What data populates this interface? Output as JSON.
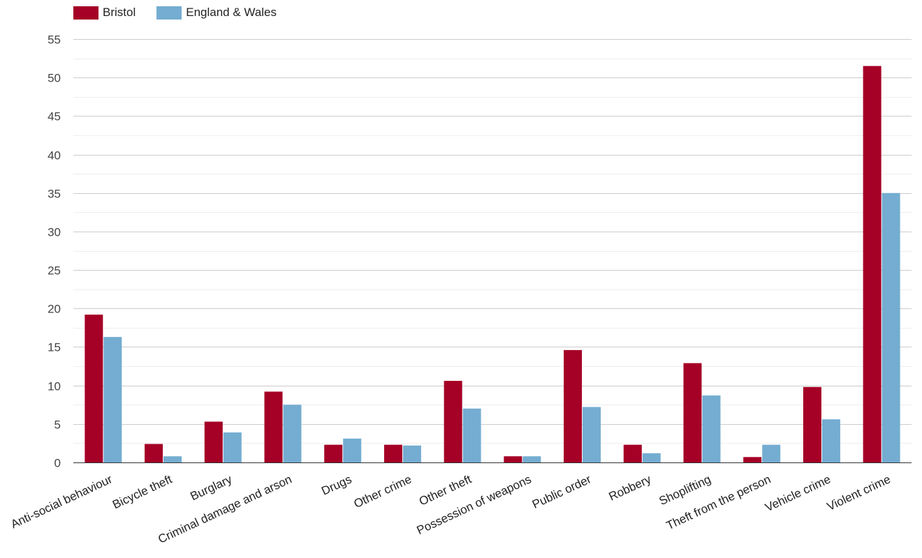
{
  "legend": {
    "series0": "Bristol",
    "series1": "England & Wales"
  },
  "colors": {
    "bristol": "#a50026",
    "england_wales": "#74add1",
    "grid_major": "#cccccc",
    "grid_minor": "#eeeeee",
    "axis": "#333333"
  },
  "chart_data": {
    "type": "bar",
    "title": "",
    "xlabel": "",
    "ylabel": "",
    "ylim": [
      0,
      55
    ],
    "yticks": [
      0,
      5,
      10,
      15,
      20,
      25,
      30,
      35,
      40,
      45,
      50,
      55
    ],
    "grid": true,
    "legend_position": "top-left",
    "categories": [
      "Anti-social behaviour",
      "Bicycle theft",
      "Burglary",
      "Criminal damage and arson",
      "Drugs",
      "Other crime",
      "Other theft",
      "Possession of weapons",
      "Public order",
      "Robbery",
      "Shoplifting",
      "Theft from the person",
      "Vehicle crime",
      "Violent crime"
    ],
    "series": [
      {
        "name": "Bristol",
        "values": [
          19.2,
          2.4,
          5.3,
          9.2,
          2.3,
          2.3,
          10.6,
          0.8,
          14.6,
          2.3,
          12.9,
          0.7,
          9.8,
          51.5
        ]
      },
      {
        "name": "England & Wales",
        "values": [
          16.3,
          0.8,
          3.9,
          7.5,
          3.1,
          2.2,
          7.0,
          0.8,
          7.2,
          1.2,
          8.7,
          2.3,
          5.6,
          35.0
        ]
      }
    ]
  }
}
